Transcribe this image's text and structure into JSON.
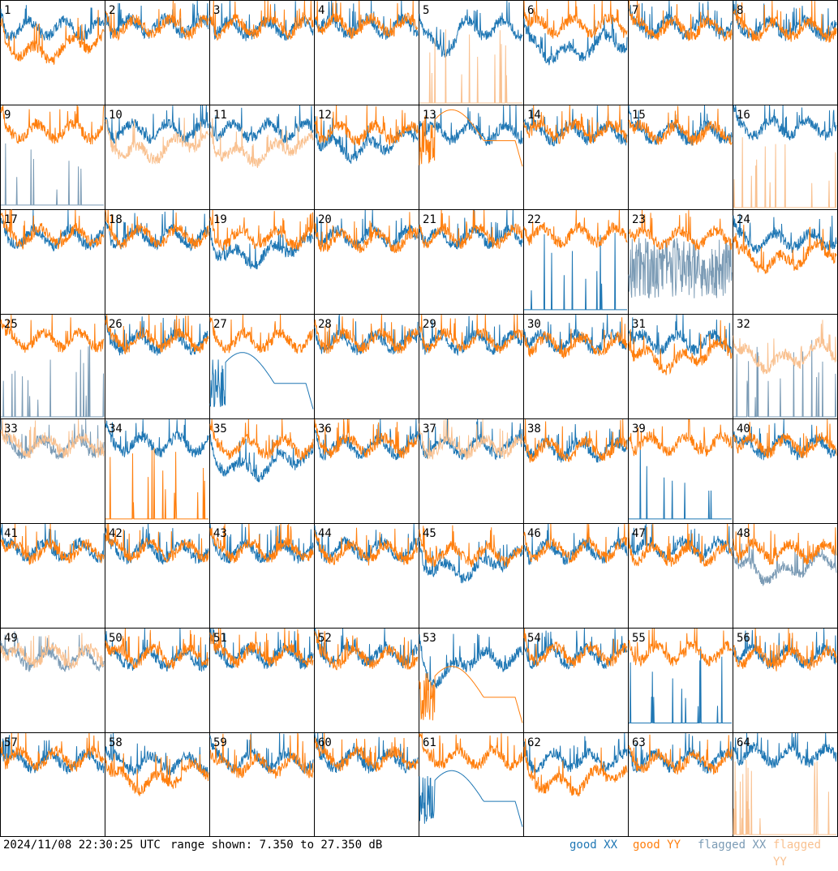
{
  "footer": {
    "timestamp": "2024/11/08 22:30:25 UTC",
    "range_text": "range shown: 7.350 to 27.350 dB",
    "legend": [
      {
        "label": "good XX",
        "color": "#1f77b4"
      },
      {
        "label": "good YY",
        "color": "#ff7f0e"
      },
      {
        "label": "flagged XX",
        "color": "#7b9bb5"
      },
      {
        "label": "flagged YY",
        "color": "#f9c190"
      }
    ]
  },
  "chart_data": {
    "type": "line",
    "x": "channel",
    "y_unit": "dB",
    "ylim": [
      7.35,
      27.35
    ],
    "grid_rows": 8,
    "grid_cols": 8,
    "grid": false,
    "legend_position": "bottom-right",
    "colors": {
      "good_xx": "#1f77b4",
      "good_yy": "#ff7f0e",
      "flagged_xx": "#7b9bb5",
      "flagged_yy": "#f9c190"
    },
    "panels": [
      {
        "label": "1",
        "xx": {
          "status": "good",
          "level": 22.0,
          "shape": "normal"
        },
        "yy": {
          "status": "good",
          "level": 19.5,
          "shape": "sag"
        }
      },
      {
        "label": "2",
        "xx": {
          "status": "good",
          "level": 22.5,
          "shape": "normal"
        },
        "yy": {
          "status": "good",
          "level": 22.3,
          "shape": "normal"
        }
      },
      {
        "label": "3",
        "xx": {
          "status": "good",
          "level": 22.0,
          "shape": "normal"
        },
        "yy": {
          "status": "good",
          "level": 22.3,
          "shape": "normal"
        }
      },
      {
        "label": "4",
        "xx": {
          "status": "good",
          "level": 22.3,
          "shape": "normal"
        },
        "yy": {
          "status": "good",
          "level": 22.5,
          "shape": "normal"
        }
      },
      {
        "label": "5",
        "xx": {
          "status": "good",
          "level": 22.0,
          "shape": "dip"
        },
        "yy": {
          "status": "flagged",
          "level": 7.5,
          "shape": "spikes"
        }
      },
      {
        "label": "6",
        "xx": {
          "status": "good",
          "level": 19.5,
          "shape": "sag"
        },
        "yy": {
          "status": "good",
          "level": 22.5,
          "shape": "normal"
        }
      },
      {
        "label": "7",
        "xx": {
          "status": "good",
          "level": 22.3,
          "shape": "normal"
        },
        "yy": {
          "status": "good",
          "level": 22.0,
          "shape": "normal"
        }
      },
      {
        "label": "8",
        "xx": {
          "status": "good",
          "level": 22.0,
          "shape": "normal"
        },
        "yy": {
          "status": "good",
          "level": 21.8,
          "shape": "normal"
        }
      },
      {
        "label": "9",
        "xx": {
          "status": "flagged",
          "level": 8.0,
          "shape": "spikes"
        },
        "yy": {
          "status": "good",
          "level": 22.3,
          "shape": "normal"
        }
      },
      {
        "label": "10",
        "xx": {
          "status": "good",
          "level": 22.5,
          "shape": "normal"
        },
        "yy": {
          "status": "flagged",
          "level": 20.5,
          "shape": "sag"
        }
      },
      {
        "label": "11",
        "xx": {
          "status": "good",
          "level": 22.5,
          "shape": "normal"
        },
        "yy": {
          "status": "flagged",
          "level": 20.0,
          "shape": "sag"
        }
      },
      {
        "label": "12",
        "xx": {
          "status": "good",
          "level": 21.0,
          "shape": "sag"
        },
        "yy": {
          "status": "good",
          "level": 22.0,
          "shape": "normal"
        }
      },
      {
        "label": "13",
        "xx": {
          "status": "good",
          "level": 22.0,
          "shape": "normal"
        },
        "yy": {
          "status": "good",
          "level": 20.5,
          "shape": "smooth"
        }
      },
      {
        "label": "14",
        "xx": {
          "status": "good",
          "level": 22.0,
          "shape": "normal"
        },
        "yy": {
          "status": "good",
          "level": 22.3,
          "shape": "normal"
        }
      },
      {
        "label": "15",
        "xx": {
          "status": "good",
          "level": 22.0,
          "shape": "normal"
        },
        "yy": {
          "status": "good",
          "level": 22.0,
          "shape": "normal"
        }
      },
      {
        "label": "16",
        "xx": {
          "status": "good",
          "level": 23.0,
          "shape": "normal"
        },
        "yy": {
          "status": "flagged",
          "level": 7.5,
          "shape": "spikes"
        }
      },
      {
        "label": "17",
        "xx": {
          "status": "good",
          "level": 22.0,
          "shape": "normal"
        },
        "yy": {
          "status": "good",
          "level": 22.3,
          "shape": "normal"
        }
      },
      {
        "label": "18",
        "xx": {
          "status": "good",
          "level": 22.0,
          "shape": "normal"
        },
        "yy": {
          "status": "good",
          "level": 22.3,
          "shape": "normal"
        }
      },
      {
        "label": "19",
        "xx": {
          "status": "good",
          "level": 20.5,
          "shape": "sag"
        },
        "yy": {
          "status": "good",
          "level": 22.0,
          "shape": "normal"
        }
      },
      {
        "label": "20",
        "xx": {
          "status": "good",
          "level": 22.0,
          "shape": "normal"
        },
        "yy": {
          "status": "good",
          "level": 21.5,
          "shape": "normal"
        }
      },
      {
        "label": "21",
        "xx": {
          "status": "good",
          "level": 22.0,
          "shape": "normal"
        },
        "yy": {
          "status": "good",
          "level": 22.3,
          "shape": "normal"
        }
      },
      {
        "label": "22",
        "xx": {
          "status": "good",
          "level": 8.0,
          "shape": "spikes"
        },
        "yy": {
          "status": "good",
          "level": 22.5,
          "shape": "normal"
        }
      },
      {
        "label": "23",
        "xx": {
          "status": "flagged",
          "level": 16.0,
          "shape": "noisy"
        },
        "yy": {
          "status": "good",
          "level": 22.0,
          "shape": "normal"
        }
      },
      {
        "label": "24",
        "xx": {
          "status": "good",
          "level": 21.5,
          "shape": "normal"
        },
        "yy": {
          "status": "good",
          "level": 19.5,
          "shape": "sag"
        }
      },
      {
        "label": "25",
        "xx": {
          "status": "flagged",
          "level": 7.5,
          "shape": "spikes"
        },
        "yy": {
          "status": "good",
          "level": 22.5,
          "shape": "normal"
        }
      },
      {
        "label": "26",
        "xx": {
          "status": "good",
          "level": 22.0,
          "shape": "normal"
        },
        "yy": {
          "status": "good",
          "level": 22.3,
          "shape": "normal"
        }
      },
      {
        "label": "27",
        "xx": {
          "status": "good",
          "level": 14.0,
          "shape": "smooth"
        },
        "yy": {
          "status": "good",
          "level": 22.3,
          "shape": "normal"
        }
      },
      {
        "label": "28",
        "xx": {
          "status": "good",
          "level": 22.0,
          "shape": "normal"
        },
        "yy": {
          "status": "good",
          "level": 22.3,
          "shape": "normal"
        }
      },
      {
        "label": "29",
        "xx": {
          "status": "good",
          "level": 22.0,
          "shape": "normal"
        },
        "yy": {
          "status": "good",
          "level": 22.3,
          "shape": "normal"
        }
      },
      {
        "label": "30",
        "xx": {
          "status": "good",
          "level": 22.0,
          "shape": "normal"
        },
        "yy": {
          "status": "good",
          "level": 21.5,
          "shape": "normal"
        }
      },
      {
        "label": "31",
        "xx": {
          "status": "good",
          "level": 22.0,
          "shape": "normal"
        },
        "yy": {
          "status": "good",
          "level": 20.5,
          "shape": "sag"
        }
      },
      {
        "label": "32",
        "xx": {
          "status": "flagged",
          "level": 7.5,
          "shape": "spikes"
        },
        "yy": {
          "status": "flagged",
          "level": 20.5,
          "shape": "sag"
        }
      },
      {
        "label": "33",
        "xx": {
          "status": "flagged",
          "level": 22.0,
          "shape": "normal"
        },
        "yy": {
          "status": "flagged",
          "level": 22.3,
          "shape": "normal"
        }
      },
      {
        "label": "34",
        "xx": {
          "status": "good",
          "level": 22.5,
          "shape": "normal"
        },
        "yy": {
          "status": "good",
          "level": 8.0,
          "shape": "spikes"
        }
      },
      {
        "label": "35",
        "xx": {
          "status": "good",
          "level": 20.0,
          "shape": "sag"
        },
        "yy": {
          "status": "good",
          "level": 22.0,
          "shape": "normal"
        }
      },
      {
        "label": "36",
        "xx": {
          "status": "good",
          "level": 22.0,
          "shape": "normal"
        },
        "yy": {
          "status": "good",
          "level": 22.3,
          "shape": "normal"
        }
      },
      {
        "label": "37",
        "xx": {
          "status": "good",
          "level": 22.0,
          "shape": "normal"
        },
        "yy": {
          "status": "flagged",
          "level": 22.0,
          "shape": "normal"
        }
      },
      {
        "label": "38",
        "xx": {
          "status": "good",
          "level": 21.5,
          "shape": "normal"
        },
        "yy": {
          "status": "good",
          "level": 21.5,
          "shape": "normal"
        }
      },
      {
        "label": "39",
        "xx": {
          "status": "good",
          "level": 8.0,
          "shape": "spikes"
        },
        "yy": {
          "status": "good",
          "level": 22.5,
          "shape": "normal"
        }
      },
      {
        "label": "40",
        "xx": {
          "status": "good",
          "level": 22.0,
          "shape": "normal"
        },
        "yy": {
          "status": "good",
          "level": 22.3,
          "shape": "normal"
        }
      },
      {
        "label": "41",
        "xx": {
          "status": "good",
          "level": 22.3,
          "shape": "normal"
        },
        "yy": {
          "status": "good",
          "level": 22.0,
          "shape": "normal"
        }
      },
      {
        "label": "42",
        "xx": {
          "status": "good",
          "level": 22.0,
          "shape": "normal"
        },
        "yy": {
          "status": "good",
          "level": 22.3,
          "shape": "normal"
        }
      },
      {
        "label": "43",
        "xx": {
          "status": "good",
          "level": 22.0,
          "shape": "normal"
        },
        "yy": {
          "status": "good",
          "level": 22.3,
          "shape": "normal"
        }
      },
      {
        "label": "44",
        "xx": {
          "status": "good",
          "level": 22.3,
          "shape": "normal"
        },
        "yy": {
          "status": "good",
          "level": 21.8,
          "shape": "normal"
        }
      },
      {
        "label": "45",
        "xx": {
          "status": "good",
          "level": 20.5,
          "shape": "sag"
        },
        "yy": {
          "status": "good",
          "level": 21.5,
          "shape": "normal"
        }
      },
      {
        "label": "46",
        "xx": {
          "status": "good",
          "level": 22.0,
          "shape": "normal"
        },
        "yy": {
          "status": "good",
          "level": 22.3,
          "shape": "normal"
        }
      },
      {
        "label": "47",
        "xx": {
          "status": "good",
          "level": 22.5,
          "shape": "normal"
        },
        "yy": {
          "status": "good",
          "level": 21.5,
          "shape": "normal"
        }
      },
      {
        "label": "48",
        "xx": {
          "status": "flagged",
          "level": 20.0,
          "shape": "sag"
        },
        "yy": {
          "status": "good",
          "level": 22.0,
          "shape": "normal"
        }
      },
      {
        "label": "49",
        "xx": {
          "status": "flagged",
          "level": 21.5,
          "shape": "normal"
        },
        "yy": {
          "status": "flagged",
          "level": 22.0,
          "shape": "normal"
        }
      },
      {
        "label": "50",
        "xx": {
          "status": "good",
          "level": 21.5,
          "shape": "normal"
        },
        "yy": {
          "status": "good",
          "level": 22.0,
          "shape": "normal"
        }
      },
      {
        "label": "51",
        "xx": {
          "status": "good",
          "level": 22.0,
          "shape": "normal"
        },
        "yy": {
          "status": "good",
          "level": 22.3,
          "shape": "normal"
        }
      },
      {
        "label": "52",
        "xx": {
          "status": "good",
          "level": 22.3,
          "shape": "normal"
        },
        "yy": {
          "status": "good",
          "level": 21.8,
          "shape": "normal"
        }
      },
      {
        "label": "53",
        "xx": {
          "status": "good",
          "level": 21.5,
          "shape": "dip"
        },
        "yy": {
          "status": "good",
          "level": 14.0,
          "shape": "smooth"
        }
      },
      {
        "label": "54",
        "xx": {
          "status": "good",
          "level": 22.0,
          "shape": "normal"
        },
        "yy": {
          "status": "good",
          "level": 22.3,
          "shape": "normal"
        }
      },
      {
        "label": "55",
        "xx": {
          "status": "good",
          "level": 9.0,
          "shape": "spikes"
        },
        "yy": {
          "status": "good",
          "level": 22.5,
          "shape": "normal"
        }
      },
      {
        "label": "56",
        "xx": {
          "status": "good",
          "level": 22.0,
          "shape": "normal"
        },
        "yy": {
          "status": "good",
          "level": 21.5,
          "shape": "normal"
        }
      },
      {
        "label": "57",
        "xx": {
          "status": "good",
          "level": 21.8,
          "shape": "normal"
        },
        "yy": {
          "status": "good",
          "level": 22.3,
          "shape": "normal"
        }
      },
      {
        "label": "58",
        "xx": {
          "status": "good",
          "level": 21.5,
          "shape": "normal"
        },
        "yy": {
          "status": "good",
          "level": 20.0,
          "shape": "sag"
        }
      },
      {
        "label": "59",
        "xx": {
          "status": "good",
          "level": 22.0,
          "shape": "normal"
        },
        "yy": {
          "status": "good",
          "level": 21.0,
          "shape": "normal"
        }
      },
      {
        "label": "60",
        "xx": {
          "status": "good",
          "level": 22.0,
          "shape": "normal"
        },
        "yy": {
          "status": "good",
          "level": 22.3,
          "shape": "normal"
        }
      },
      {
        "label": "61",
        "xx": {
          "status": "good",
          "level": 14.0,
          "shape": "smooth"
        },
        "yy": {
          "status": "good",
          "level": 22.5,
          "shape": "normal"
        }
      },
      {
        "label": "62",
        "xx": {
          "status": "good",
          "level": 22.0,
          "shape": "normal"
        },
        "yy": {
          "status": "good",
          "level": 19.5,
          "shape": "sag"
        }
      },
      {
        "label": "63",
        "xx": {
          "status": "good",
          "level": 22.0,
          "shape": "normal"
        },
        "yy": {
          "status": "good",
          "level": 21.8,
          "shape": "normal"
        }
      },
      {
        "label": "64",
        "xx": {
          "status": "good",
          "level": 23.0,
          "shape": "normal"
        },
        "yy": {
          "status": "flagged",
          "level": 7.5,
          "shape": "spikes"
        }
      }
    ]
  }
}
